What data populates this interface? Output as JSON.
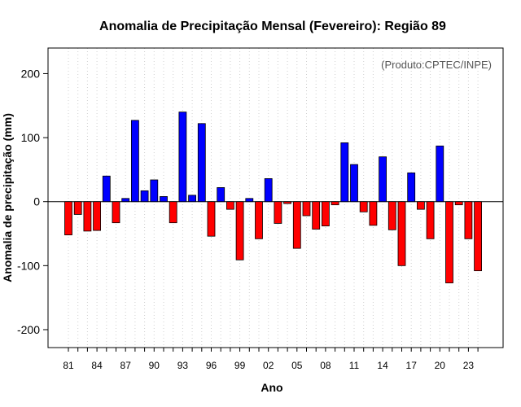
{
  "chart_data": {
    "type": "bar",
    "title": "Anomalia de Precipitação Mensal (Fevereiro): Região 89",
    "xlabel": "Ano",
    "ylabel": "Anomalia de precipitação (mm)",
    "credit": "(Produto:CPTEC/INPE)",
    "ylim": [
      -228,
      240
    ],
    "yticks": [
      -200,
      -100,
      0,
      100,
      200
    ],
    "grid": true,
    "years": [
      1981,
      1982,
      1983,
      1984,
      1985,
      1986,
      1987,
      1988,
      1989,
      1990,
      1991,
      1992,
      1993,
      1994,
      1995,
      1996,
      1997,
      1998,
      1999,
      2000,
      2001,
      2002,
      2003,
      2004,
      2005,
      2006,
      2007,
      2008,
      2009,
      2010,
      2011,
      2012,
      2013,
      2014,
      2015,
      2016,
      2017,
      2018,
      2019,
      2020,
      2021,
      2022,
      2023,
      2024
    ],
    "x_tick_labels": [
      "81",
      "84",
      "87",
      "90",
      "93",
      "96",
      "99",
      "02",
      "05",
      "08",
      "11",
      "14",
      "17",
      "20",
      "23"
    ],
    "values": [
      -52,
      -20,
      -46,
      -45,
      40,
      -33,
      5,
      127,
      17,
      34,
      8,
      -33,
      140,
      10,
      122,
      -54,
      22,
      -12,
      -91,
      5,
      -58,
      36,
      -34,
      -3,
      -73,
      -22,
      -43,
      -38,
      -5,
      92,
      58,
      -16,
      -37,
      70,
      -44,
      -100,
      45,
      -12,
      -58,
      87,
      -127,
      -5,
      -58,
      -108
    ],
    "positive_color": "#0000ff",
    "negative_color": "#ff0000"
  }
}
